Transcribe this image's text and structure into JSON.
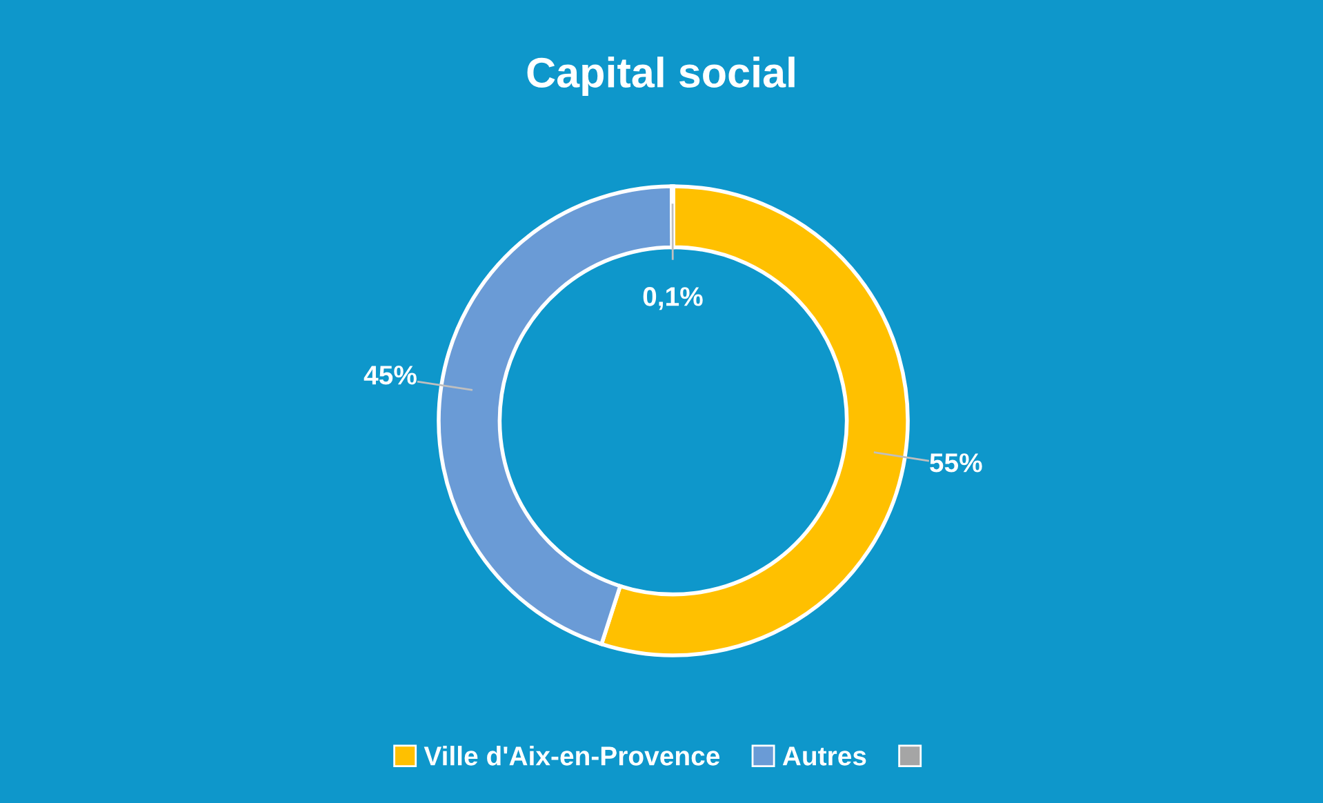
{
  "chart_data": {
    "type": "donut",
    "title": "Capital social",
    "categories": [
      "Ville d'Aix-en-Provence",
      "Autres",
      null
    ],
    "values": [
      55,
      45,
      0.1
    ],
    "value_labels": [
      "55%",
      "45%",
      "0,1%"
    ],
    "colors": [
      "#ffc000",
      "#6a9bd6",
      "#a5a5a5"
    ],
    "legend": "bottom"
  }
}
